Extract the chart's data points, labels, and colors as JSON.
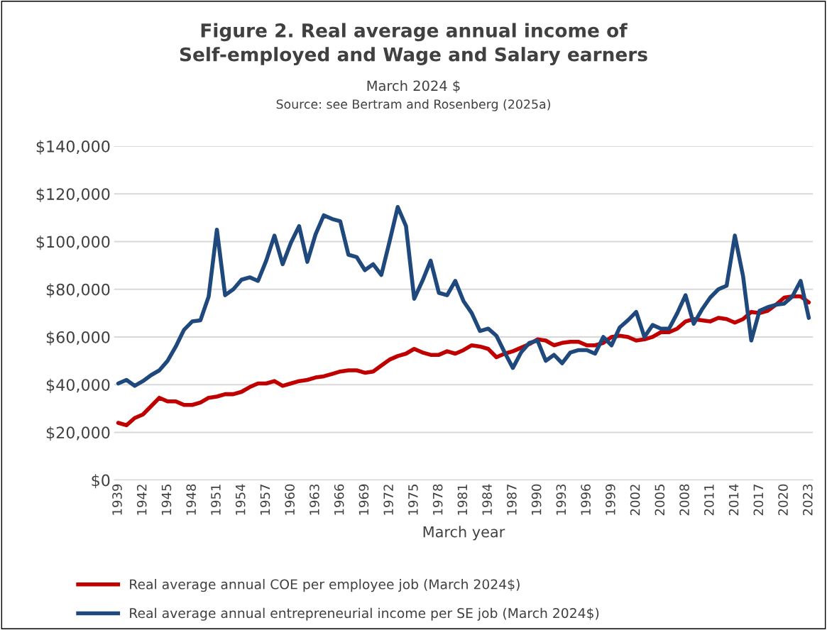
{
  "chart_data": {
    "type": "line",
    "title": "Figure 2. Real average annual income of\nSelf-employed and Wage and Salary earners",
    "subtitle": "March 2024 $",
    "annotations": [
      "Source: see Bertram and Rosenberg (2025a)"
    ],
    "xlabel": "March year",
    "categories": [
      "1939",
      null,
      null,
      "1942",
      null,
      null,
      "1945",
      null,
      null,
      "1948",
      null,
      null,
      "1951",
      null,
      null,
      "1954",
      null,
      null,
      "1957",
      null,
      null,
      "1960",
      null,
      null,
      "1963",
      null,
      null,
      "1966",
      null,
      null,
      "1969",
      null,
      null,
      "1972",
      null,
      null,
      "1975",
      null,
      null,
      "1978",
      null,
      null,
      "1981",
      null,
      null,
      "1984",
      null,
      null,
      "1987",
      null,
      null,
      "1990",
      null,
      null,
      "1993",
      null,
      null,
      "1996",
      null,
      null,
      "1999",
      null,
      null,
      "2002",
      null,
      null,
      "2005",
      null,
      null,
      "2008",
      null,
      null,
      "2011",
      null,
      null,
      "2014",
      null,
      null,
      "2017",
      null,
      null,
      "2020",
      null,
      null,
      "2023"
    ],
    "series": [
      {
        "name": "Real average annual COE per employee job (March 2024$)",
        "color": "#c00000",
        "values": [
          24000,
          23000,
          26000,
          27500,
          31000,
          34500,
          33000,
          33000,
          31500,
          31500,
          32500,
          34500,
          35000,
          36000,
          36000,
          37000,
          39000,
          40500,
          40500,
          41500,
          39500,
          40500,
          41500,
          42000,
          43000,
          43500,
          44500,
          45500,
          46000,
          46000,
          45000,
          45500,
          48000,
          50500,
          52000,
          53000,
          55000,
          53500,
          52500,
          52500,
          54000,
          53000,
          54500,
          56500,
          56000,
          55000,
          51500,
          53000,
          54000,
          55500,
          57000,
          59000,
          58500,
          56500,
          57500,
          58000,
          58000,
          56500,
          56500,
          57500,
          60000,
          60500,
          60000,
          58500,
          59000,
          60000,
          62000,
          62000,
          63500,
          66500,
          67500,
          67000,
          66500,
          68000,
          67500,
          66000,
          67500,
          70500,
          70000,
          71000,
          73500,
          76500,
          77000,
          77000,
          74500
        ]
      },
      {
        "name": "Real average annual entrepreneurial income per SE job (March 2024$)",
        "color": "#1f497d",
        "values": [
          40500,
          42000,
          39500,
          41500,
          44000,
          46000,
          50000,
          56000,
          63000,
          66500,
          67000,
          77000,
          105000,
          77500,
          80000,
          84000,
          85000,
          83500,
          92000,
          102500,
          90500,
          99500,
          106500,
          91500,
          103000,
          111000,
          109500,
          108500,
          94500,
          93500,
          88000,
          90500,
          86000,
          100000,
          114500,
          106500,
          76000,
          83500,
          92000,
          78500,
          77500,
          83500,
          75000,
          70000,
          62500,
          63500,
          60500,
          53500,
          47000,
          53500,
          57500,
          58500,
          50000,
          52500,
          49000,
          53500,
          54500,
          54500,
          53000,
          60000,
          56500,
          64000,
          67000,
          70500,
          60000,
          65000,
          63500,
          63500,
          70000,
          77500,
          65500,
          71500,
          76500,
          80000,
          81500,
          102500,
          85500,
          58500,
          71000,
          72500,
          73500,
          74000,
          77000,
          83500,
          68000
        ]
      }
    ],
    "ylim": [
      0,
      140000
    ],
    "yticks": [
      {
        "value": 0,
        "label": "$0"
      },
      {
        "value": 20000,
        "label": "$20,000"
      },
      {
        "value": 40000,
        "label": "$40,000"
      },
      {
        "value": 60000,
        "label": "$60,000"
      },
      {
        "value": 80000,
        "label": "$80,000"
      },
      {
        "value": 100000,
        "label": "$100,000"
      },
      {
        "value": 120000,
        "label": "$120,000"
      },
      {
        "value": 140000,
        "label": "$140,000"
      }
    ],
    "grid": "y",
    "legend": "bottom",
    "marker": "none",
    "line_style": "solid"
  }
}
